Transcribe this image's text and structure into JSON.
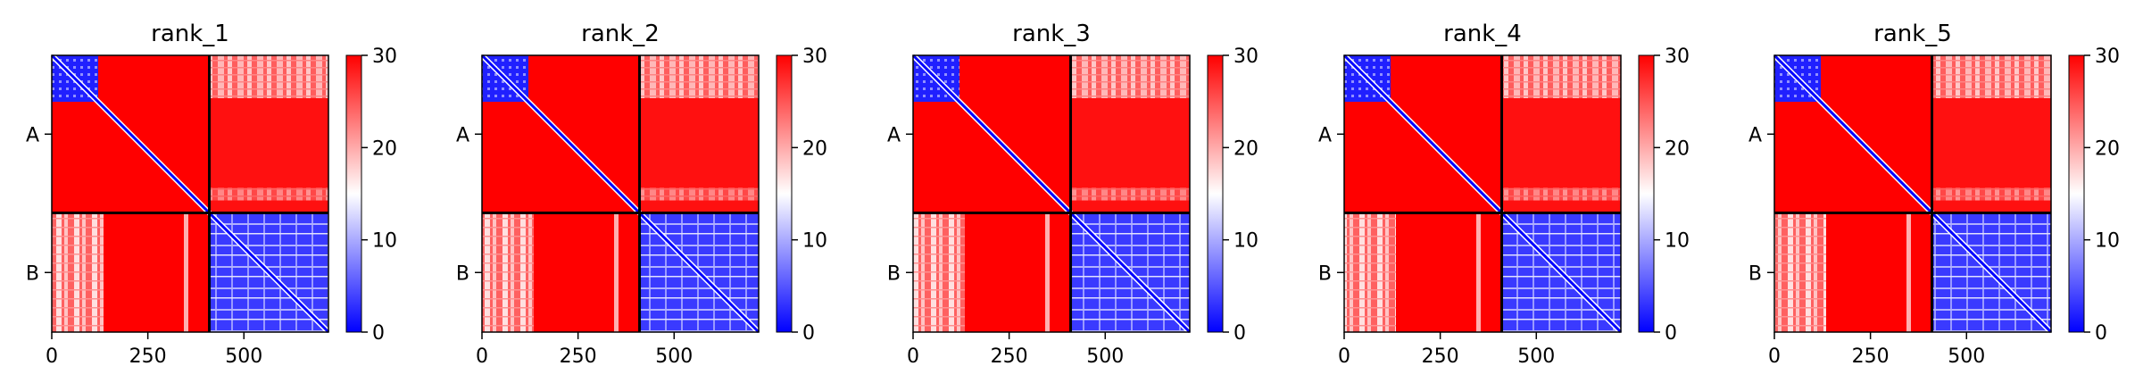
{
  "chart_data": {
    "type": "heatmap",
    "panels": [
      {
        "title": "rank_1"
      },
      {
        "title": "rank_2"
      },
      {
        "title": "rank_3"
      },
      {
        "title": "rank_4"
      },
      {
        "title": "rank_5"
      }
    ],
    "matrix_size": 720,
    "chain_split": 410,
    "chains": [
      {
        "label": "A",
        "start": 0,
        "end": 410
      },
      {
        "label": "B",
        "start": 410,
        "end": 720
      }
    ],
    "x_ticks": [
      0,
      250,
      500
    ],
    "x_tick_labels": [
      "0",
      "250",
      "500"
    ],
    "y_tick_labels": [
      "A",
      "B"
    ],
    "colorbar": {
      "min": 0,
      "max": 30,
      "ticks": [
        0,
        10,
        20,
        30
      ],
      "tick_labels": [
        "0",
        "10",
        "20",
        "30"
      ],
      "colormap": [
        "#0000ff",
        "#ffffff",
        "#ff0000"
      ]
    },
    "grid": false,
    "colors": {
      "low": "#0000ff",
      "mid": "#ffffff",
      "high": "#ff0000",
      "divider": "#000000"
    }
  }
}
